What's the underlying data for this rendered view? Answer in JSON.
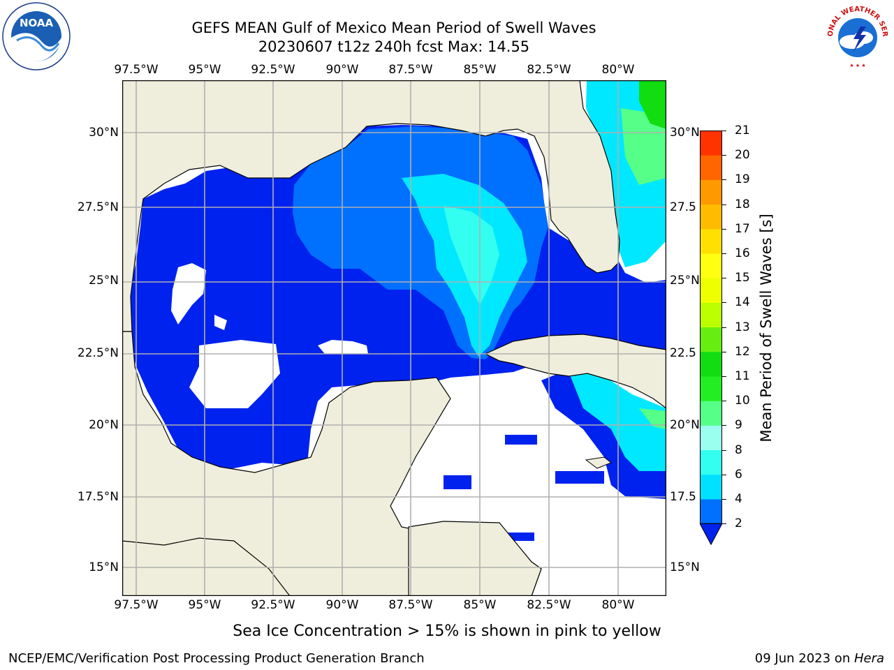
{
  "title": {
    "line1": "GEFS MEAN Gulf of Mexico Mean Period of Swell Waves",
    "line2": "20230607 t12z 240h fcst   Max: 14.55"
  },
  "logos": {
    "noaa_text": "NOAA",
    "nws_text": "NATIONAL WEATHER SERVICE"
  },
  "map": {
    "lon_labels": [
      "97.5°W",
      "95°W",
      "92.5°W",
      "90°W",
      "87.5°W",
      "85°W",
      "82.5°W",
      "80°W"
    ],
    "lat_labels_left": [
      "30°N",
      "27.5°N",
      "25°N",
      "22.5°N",
      "20°N",
      "17.5°N",
      "15°N"
    ],
    "lat_labels_right": [
      "30°N",
      "27.5",
      "25°N",
      "22.5",
      "20°N",
      "17.5",
      "15°N"
    ],
    "land_color": "#efeedc",
    "grid": true
  },
  "colorbar": {
    "label": "Mean Period of Swell Waves [s]",
    "ticks": [
      "2",
      "4",
      "6",
      "8",
      "9",
      "10",
      "11",
      "12",
      "13",
      "14",
      "15",
      "16",
      "17",
      "18",
      "19",
      "20",
      "21"
    ],
    "colors": [
      "#0070ff",
      "#00e0ff",
      "#33fff0",
      "#9bfff0",
      "#55ff88",
      "#22ee22",
      "#11dd11",
      "#66ee11",
      "#bbff00",
      "#eeff00",
      "#ffff11",
      "#ffe000",
      "#ffbb00",
      "#ff9900",
      "#ff6600",
      "#ff3300"
    ],
    "under_color": "#0022ee"
  },
  "note": "Sea Ice Concentration > 15% is shown in pink to yellow",
  "footer": {
    "left": "NCEP/EMC/Verification Post Processing Product Generation Branch",
    "right_date": "09 Jun 2023 on ",
    "right_host": "Hera"
  }
}
